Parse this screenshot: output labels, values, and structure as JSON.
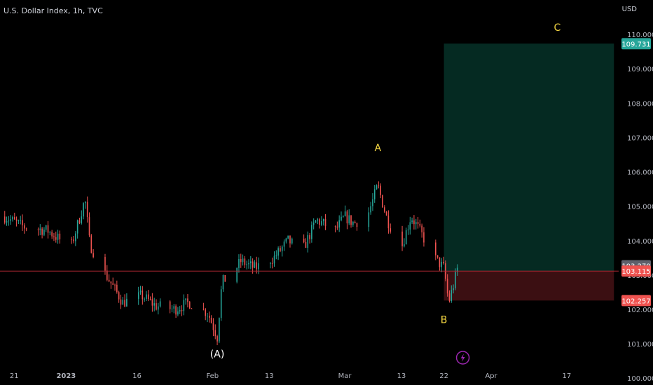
{
  "header": {
    "symbol_title": "U.S. Dollar Index, 1h, TVC",
    "currency": "USD"
  },
  "colors": {
    "background": "#000000",
    "up": "#26a69a",
    "down": "#ef5350",
    "wave_label": "#f5d742",
    "profit_zone": "#052a22",
    "loss_zone": "#3b0f12",
    "price_line": "#b22833",
    "axis_text": "#b2b5be",
    "lightning_badge": "#9c27b0"
  },
  "chart_data": {
    "type": "candlestick",
    "title": "U.S. Dollar Index, 1h, TVC",
    "ylim": [
      99.8,
      111.0
    ],
    "y_ticks": [
      "100.000",
      "101.000",
      "102.000",
      "103.000",
      "104.000",
      "105.000",
      "106.000",
      "107.000",
      "108.000",
      "109.000",
      "110.000"
    ],
    "y_tick_values": [
      100,
      101,
      102,
      103,
      104,
      105,
      106,
      107,
      108,
      109,
      110
    ],
    "x_ticks": [
      "21",
      "2023",
      "16",
      "Feb",
      "13",
      "Mar",
      "13",
      "22",
      "Apr",
      "17"
    ],
    "x_tick_bold": [
      "2023"
    ],
    "x_tick_dates": [
      "2022-12-21",
      "2023-01-01",
      "2023-01-16",
      "2023-02-01",
      "2023-02-13",
      "2023-03-01",
      "2023-03-13",
      "2023-03-22",
      "2023-04-01",
      "2023-04-17"
    ],
    "x_range": [
      "2022-12-18",
      "2023-04-28"
    ],
    "series": [
      {
        "type": "close_path",
        "x": [
          "2022-12-19",
          "2022-12-23",
          "2022-12-28",
          "2023-01-02",
          "2023-01-05",
          "2023-01-06",
          "2023-01-09",
          "2023-01-13",
          "2023-01-17",
          "2023-01-20",
          "2023-01-24",
          "2023-01-27",
          "2023-01-31",
          "2023-02-02",
          "2023-02-03",
          "2023-02-05",
          "2023-02-07",
          "2023-02-10",
          "2023-02-14",
          "2023-02-17",
          "2023-02-20",
          "2023-02-23",
          "2023-02-27",
          "2023-03-01",
          "2023-03-03",
          "2023-03-06",
          "2023-03-08",
          "2023-03-10",
          "2023-03-13",
          "2023-03-15",
          "2023-03-16",
          "2023-03-20",
          "2023-03-22",
          "2023-03-23",
          "2023-03-24",
          "2023-03-25"
        ],
        "y": [
          104.7,
          104.4,
          104.3,
          103.8,
          105.2,
          103.9,
          103.1,
          102.2,
          102.4,
          102.1,
          102.0,
          102.2,
          101.9,
          101.2,
          102.8,
          103.0,
          103.4,
          103.2,
          103.5,
          104.0,
          103.7,
          104.6,
          104.3,
          104.7,
          104.5,
          104.8,
          105.6,
          104.6,
          103.8,
          104.7,
          104.5,
          103.5,
          103.2,
          102.2,
          102.7,
          103.27
        ]
      }
    ],
    "wave_labels": [
      {
        "text": "(A)",
        "date": "2023-02-02",
        "price": 100.6
      },
      {
        "text": "A",
        "date": "2023-03-08",
        "price": 106.6
      },
      {
        "text": "B",
        "date": "2023-03-22",
        "price": 101.6
      },
      {
        "text": "C",
        "date": "2023-04-15",
        "price": 110.1
      }
    ],
    "position": {
      "start_date": "2023-03-22",
      "end_date": "2023-04-27",
      "entry": 103.115,
      "target": 109.731,
      "stop": 102.257
    },
    "price_labels": [
      {
        "text": "109.731",
        "value": 109.731,
        "kind": "target"
      },
      {
        "text": "103.270",
        "value": 103.27,
        "kind": "last"
      },
      {
        "text": "103.115",
        "value": 103.115,
        "kind": "entry"
      },
      {
        "text": "102.257",
        "value": 102.257,
        "kind": "stop"
      }
    ],
    "last_price": 103.27,
    "badge_date": "2023-03-26"
  }
}
